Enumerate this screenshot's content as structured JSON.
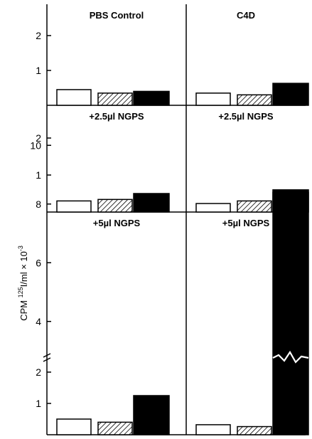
{
  "figure": {
    "ylabel_prefix": "CPM ",
    "ylabel_iso": "125",
    "ylabel_main": "I/ml × 10",
    "ylabel_exp": "-3"
  },
  "chart_data": [
    {
      "type": "bar",
      "title": "PBS Control",
      "yticks": [
        "1",
        "2"
      ],
      "ylim": [
        0,
        2.9
      ],
      "series_fill": [
        "white",
        "hatched",
        "black"
      ],
      "values": [
        0.45,
        0.35,
        0.4
      ]
    },
    {
      "type": "bar",
      "title": "C4D",
      "yticks": [
        "1",
        "2"
      ],
      "ylim": [
        0,
        2.9
      ],
      "series_fill": [
        "white",
        "hatched",
        "black"
      ],
      "values": [
        0.35,
        0.3,
        0.63
      ]
    },
    {
      "type": "bar",
      "title": "+2.5µl NGPS",
      "yticks": [
        "1",
        "2"
      ],
      "ylim": [
        0,
        2.9
      ],
      "series_fill": [
        "white",
        "hatched",
        "black"
      ],
      "values": [
        0.3,
        0.34,
        0.5
      ]
    },
    {
      "type": "bar",
      "title": "+2.5µl NGPS",
      "yticks": [
        "1",
        "2"
      ],
      "ylim": [
        0,
        2.9
      ],
      "series_fill": [
        "white",
        "hatched",
        "black"
      ],
      "values": [
        0.23,
        0.3,
        0.6
      ]
    },
    {
      "type": "bar",
      "title": "+5µl NGPS",
      "yticks": [
        "1",
        "2",
        "4",
        "6",
        "8",
        "10"
      ],
      "axis_break_between": [
        2,
        4
      ],
      "series_fill": [
        "white",
        "hatched",
        "black"
      ],
      "values": [
        0.5,
        0.4,
        1.25
      ]
    },
    {
      "type": "bar",
      "title": "+5µl NGPS",
      "yticks": [
        "1",
        "2",
        "4",
        "6",
        "8",
        "10"
      ],
      "axis_break_between": [
        2,
        4
      ],
      "series_fill": [
        "white",
        "hatched",
        "black"
      ],
      "values": [
        0.32,
        0.26,
        8.4
      ]
    }
  ]
}
